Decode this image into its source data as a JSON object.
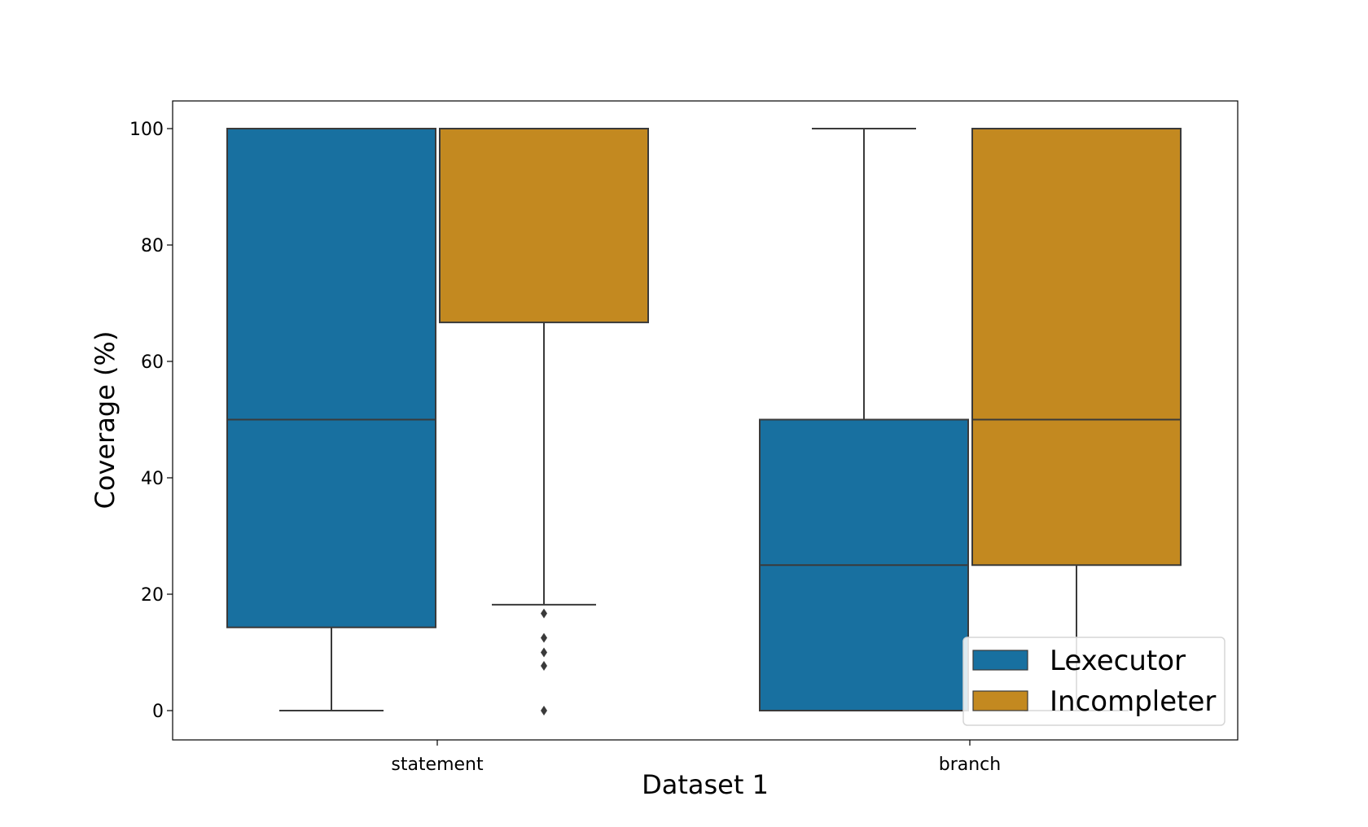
{
  "chart_data": {
    "type": "box",
    "xlabel": "Dataset 1",
    "ylabel": "Coverage (%)",
    "ylim": [
      -5,
      105
    ],
    "yticks": [
      0,
      20,
      40,
      60,
      80,
      100
    ],
    "categories": [
      "statement",
      "branch"
    ],
    "grid": false,
    "legend_position": "lower-right",
    "series": [
      {
        "name": "Lexecutor",
        "color": "#1870a0",
        "boxes": [
          {
            "category": "statement",
            "whisker_low": 0,
            "q1": 14.3,
            "median": 50,
            "q3": 100,
            "whisker_high": 100,
            "outliers": []
          },
          {
            "category": "branch",
            "whisker_low": 0,
            "q1": 0,
            "median": 25,
            "q3": 50,
            "whisker_high": 100,
            "outliers": []
          }
        ]
      },
      {
        "name": "Incompleter",
        "color": "#c38920",
        "boxes": [
          {
            "category": "statement",
            "whisker_low": 18.2,
            "q1": 66.7,
            "median": 100,
            "q3": 100,
            "whisker_high": 100,
            "outliers": [
              16.7,
              12.5,
              10,
              7.7,
              0
            ]
          },
          {
            "category": "branch",
            "whisker_low": 0,
            "q1": 25,
            "median": 50,
            "q3": 100,
            "whisker_high": 100,
            "outliers": []
          }
        ]
      }
    ]
  }
}
